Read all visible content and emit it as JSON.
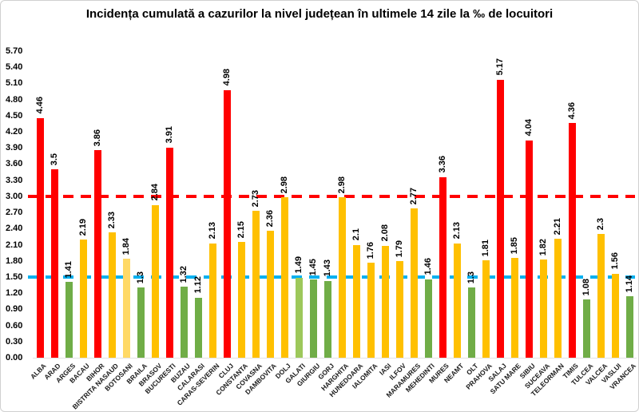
{
  "title": "Incidența cumulată a cazurilor la nivel județean în ultimele 14 zile la ‰ de locuitori",
  "chart_data": {
    "type": "bar",
    "title": "Incidența cumulată a cazurilor la nivel județean în ultimele 14 zile la ‰ de locuitori",
    "xlabel": "",
    "ylabel": "",
    "ylim": [
      0,
      5.7
    ],
    "grid": false,
    "legend": false,
    "y_ticks": [
      "5.70",
      "5.40",
      "5.10",
      "4.80",
      "4.50",
      "4.20",
      "3.90",
      "3.60",
      "3.30",
      "3.00",
      "2.70",
      "2.40",
      "2.10",
      "1.80",
      "1.50",
      "1.20",
      "0.90",
      "0.60",
      "0.30",
      "0.00"
    ],
    "palette": {
      "red": "#FF0000",
      "amber": "#FFC000",
      "light_amber": "#FFD966",
      "green": "#70AD47",
      "light_green": "#9DC85B"
    },
    "reference_lines": [
      {
        "value": 3.0,
        "color": "#FF0000",
        "style": "dashed"
      },
      {
        "value": 1.5,
        "color": "#00B0F0",
        "style": "dashed"
      }
    ],
    "points": [
      {
        "label": "ALBA",
        "value": 4.46,
        "text": "4.46",
        "color": "red"
      },
      {
        "label": "ARAD",
        "value": 3.5,
        "text": "3.5",
        "color": "red"
      },
      {
        "label": "ARGES",
        "value": 1.41,
        "text": "1.41",
        "color": "green"
      },
      {
        "label": "BACAU",
        "value": 2.19,
        "text": "2.19",
        "color": "amber"
      },
      {
        "label": "BIHOR",
        "value": 3.86,
        "text": "3.86",
        "color": "red"
      },
      {
        "label": "BISTRITA NASAUD",
        "value": 2.33,
        "text": "2.33",
        "color": "amber"
      },
      {
        "label": "BOTOSANI",
        "value": 1.84,
        "text": "1.84",
        "color": "light_amber"
      },
      {
        "label": "BRAILA",
        "value": 1.3,
        "text": "1.3",
        "color": "green"
      },
      {
        "label": "BRASOV",
        "value": 2.84,
        "text": "2.84",
        "color": "amber"
      },
      {
        "label": "BUCURESTI",
        "value": 3.91,
        "text": "3.91",
        "color": "red"
      },
      {
        "label": "BUZAU",
        "value": 1.32,
        "text": "1.32",
        "color": "green"
      },
      {
        "label": "CALARASI",
        "value": 1.12,
        "text": "1.12",
        "color": "green"
      },
      {
        "label": "CARAS-SEVERIN",
        "value": 2.13,
        "text": "2.13",
        "color": "amber"
      },
      {
        "label": "CLUJ",
        "value": 4.98,
        "text": "4.98",
        "color": "red"
      },
      {
        "label": "CONSTANTA",
        "value": 2.15,
        "text": "2.15",
        "color": "amber"
      },
      {
        "label": "COVASNA",
        "value": 2.73,
        "text": "2.73",
        "color": "amber"
      },
      {
        "label": "DAMBOVITA",
        "value": 2.36,
        "text": "2.36",
        "color": "amber"
      },
      {
        "label": "DOLJ",
        "value": 2.98,
        "text": "2.98",
        "color": "amber"
      },
      {
        "label": "GALATI",
        "value": 1.49,
        "text": "1.49",
        "color": "light_green"
      },
      {
        "label": "GIURGIU",
        "value": 1.45,
        "text": "1.45",
        "color": "green"
      },
      {
        "label": "GORJ",
        "value": 1.43,
        "text": "1.43",
        "color": "green"
      },
      {
        "label": "HARGHITA",
        "value": 2.98,
        "text": "2.98",
        "color": "amber"
      },
      {
        "label": "HUNEDOARA",
        "value": 2.1,
        "text": "2.1",
        "color": "amber"
      },
      {
        "label": "IALOMITA",
        "value": 1.76,
        "text": "1.76",
        "color": "amber"
      },
      {
        "label": "IASI",
        "value": 2.08,
        "text": "2.08",
        "color": "amber"
      },
      {
        "label": "ILFOV",
        "value": 1.79,
        "text": "1.79",
        "color": "amber"
      },
      {
        "label": "MARAMURES",
        "value": 2.77,
        "text": "2.77",
        "color": "amber"
      },
      {
        "label": "MEHEDINTI",
        "value": 1.46,
        "text": "1.46",
        "color": "green"
      },
      {
        "label": "MURES",
        "value": 3.36,
        "text": "3.36",
        "color": "red"
      },
      {
        "label": "NEAMT",
        "value": 2.13,
        "text": "2.13",
        "color": "amber"
      },
      {
        "label": "OLT",
        "value": 1.3,
        "text": "1.3",
        "color": "green"
      },
      {
        "label": "PRAHOVA",
        "value": 1.81,
        "text": "1.81",
        "color": "amber"
      },
      {
        "label": "SALAJ",
        "value": 5.17,
        "text": "5.17",
        "color": "red"
      },
      {
        "label": "SATU MARE",
        "value": 1.85,
        "text": "1.85",
        "color": "amber"
      },
      {
        "label": "SIBIU",
        "value": 4.04,
        "text": "4.04",
        "color": "red"
      },
      {
        "label": "SUCEAVA",
        "value": 1.82,
        "text": "1.82",
        "color": "amber"
      },
      {
        "label": "TELEORMAN",
        "value": 2.21,
        "text": "2.21",
        "color": "amber"
      },
      {
        "label": "TIMIS",
        "value": 4.36,
        "text": "4.36",
        "color": "red"
      },
      {
        "label": "TULCEA",
        "value": 1.08,
        "text": "1.08",
        "color": "green"
      },
      {
        "label": "VALCEA",
        "value": 2.3,
        "text": "2.3",
        "color": "amber"
      },
      {
        "label": "VASLUI",
        "value": 1.56,
        "text": "1.56",
        "color": "amber"
      },
      {
        "label": "VRANCEA",
        "value": 1.14,
        "text": "1.14",
        "color": "green"
      }
    ]
  }
}
